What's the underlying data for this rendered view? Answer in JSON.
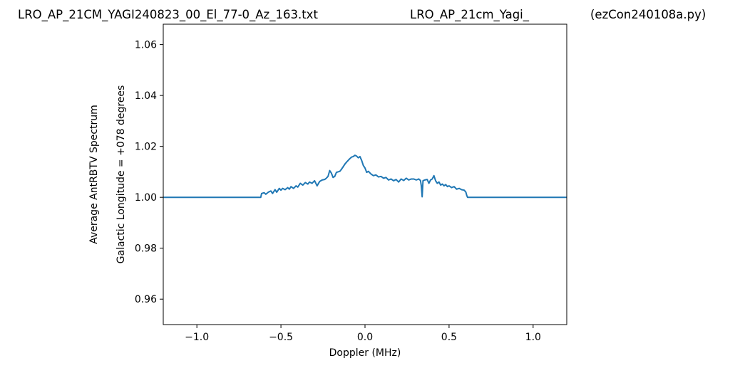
{
  "chart_data": {
    "type": "line",
    "title_left": "LRO_AP_21CM_YAGI240823_00_El_77-0_Az_163.txt",
    "title_center": "LRO_AP_21cm_Yagi_",
    "title_right": "(ezCon240108a.py)",
    "xlabel": "Doppler (MHz)",
    "ylabel_line1": "Average AntRBTV Spectrum",
    "ylabel_line2": "Galactic Longitude = +078 degrees",
    "xlim": [
      -1.2,
      1.2
    ],
    "ylim": [
      0.95,
      1.068
    ],
    "x_ticks": [
      -1.0,
      -0.5,
      0.0,
      0.5,
      1.0
    ],
    "x_tick_labels": [
      "−1.0",
      "−0.5",
      "0.0",
      "0.5",
      "1.0"
    ],
    "y_ticks": [
      0.96,
      0.98,
      1.0,
      1.02,
      1.04,
      1.06
    ],
    "y_tick_labels": [
      "0.96",
      "0.98",
      "1.00",
      "1.02",
      "1.04",
      "1.06"
    ],
    "grid": false,
    "series_color": "#1f77b4",
    "series": [
      {
        "x": [
          -1.2,
          -0.62,
          -0.615,
          -0.6,
          -0.59,
          -0.575,
          -0.56,
          -0.55,
          -0.535,
          -0.525,
          -0.51,
          -0.5,
          -0.49,
          -0.475,
          -0.46,
          -0.45,
          -0.44,
          -0.425,
          -0.41,
          -0.4,
          -0.385,
          -0.37,
          -0.355,
          -0.34,
          -0.33,
          -0.315,
          -0.3,
          -0.285,
          -0.27,
          -0.255,
          -0.24,
          -0.23,
          -0.22,
          -0.21,
          -0.2,
          -0.19,
          -0.18,
          -0.17,
          -0.16,
          -0.15,
          -0.14,
          -0.13,
          -0.12,
          -0.11,
          -0.1,
          -0.09,
          -0.08,
          -0.07,
          -0.06,
          -0.05,
          -0.04,
          -0.03,
          -0.02,
          -0.01,
          0.0,
          0.01,
          0.02,
          0.035,
          0.05,
          0.065,
          0.08,
          0.095,
          0.11,
          0.125,
          0.14,
          0.155,
          0.17,
          0.185,
          0.2,
          0.215,
          0.23,
          0.245,
          0.26,
          0.275,
          0.29,
          0.305,
          0.32,
          0.33,
          0.335,
          0.34,
          0.345,
          0.355,
          0.37,
          0.38,
          0.39,
          0.4,
          0.41,
          0.42,
          0.43,
          0.44,
          0.45,
          0.46,
          0.47,
          0.48,
          0.49,
          0.5,
          0.515,
          0.53,
          0.545,
          0.56,
          0.575,
          0.59,
          0.6,
          0.605,
          0.61,
          1.2
        ],
        "y": [
          1.0,
          1.0,
          1.0015,
          1.0018,
          1.0012,
          1.002,
          1.0025,
          1.0015,
          1.003,
          1.002,
          1.0035,
          1.0028,
          1.0035,
          1.003,
          1.0038,
          1.0032,
          1.0042,
          1.0035,
          1.0045,
          1.004,
          1.0055,
          1.0048,
          1.0058,
          1.0052,
          1.006,
          1.0055,
          1.0065,
          1.0045,
          1.0062,
          1.0068,
          1.007,
          1.0075,
          1.0082,
          1.0105,
          1.0095,
          1.0078,
          1.0082,
          1.0098,
          1.01,
          1.0102,
          1.011,
          1.012,
          1.013,
          1.0138,
          1.0145,
          1.0152,
          1.0158,
          1.016,
          1.0165,
          1.0162,
          1.0155,
          1.016,
          1.0145,
          1.0125,
          1.0115,
          1.0098,
          1.0102,
          1.0092,
          1.0085,
          1.0088,
          1.008,
          1.0082,
          1.0075,
          1.0078,
          1.0068,
          1.0072,
          1.0065,
          1.007,
          1.006,
          1.0072,
          1.0066,
          1.0075,
          1.0068,
          1.0072,
          1.0072,
          1.0068,
          1.0072,
          1.0066,
          1.0045,
          1.0002,
          1.0065,
          1.0068,
          1.007,
          1.0055,
          1.0068,
          1.0072,
          1.0085,
          1.0065,
          1.0055,
          1.006,
          1.0048,
          1.0052,
          1.0045,
          1.005,
          1.0042,
          1.0045,
          1.0038,
          1.0042,
          1.0032,
          1.0035,
          1.003,
          1.0028,
          1.002,
          1.0008,
          1.0,
          1.0
        ]
      }
    ]
  }
}
